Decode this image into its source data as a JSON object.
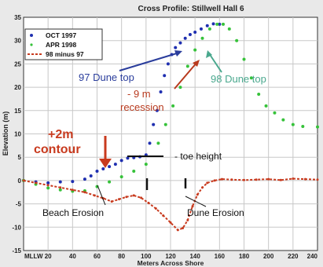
{
  "chart_data": {
    "type": "line",
    "title": "Cross Profile: Stillwell Hall 6",
    "xlabel": "Meters Across Shore",
    "ylabel": "Elevation (m)",
    "xlim": [
      0,
      240
    ],
    "ylim": [
      -15,
      35
    ],
    "x_ticks": [
      "MLLW",
      "20",
      "40",
      "60",
      "80",
      "100",
      "120",
      "140",
      "160",
      "180",
      "200",
      "220",
      "240"
    ],
    "y_ticks": [
      "35",
      "30",
      "25",
      "20",
      "15",
      "10",
      "5",
      "0",
      "-5",
      "-10",
      "-15"
    ],
    "grid": true,
    "legend_position": "top-left",
    "series": [
      {
        "name": "OCT 1997",
        "color": "#1f2fb0",
        "style": "markers",
        "points": [
          [
            0,
            0
          ],
          [
            10,
            -0.3
          ],
          [
            20,
            -0.5
          ],
          [
            30,
            -0.3
          ],
          [
            40,
            -0.2
          ],
          [
            50,
            0.3
          ],
          [
            55,
            1
          ],
          [
            60,
            2
          ],
          [
            65,
            2.5
          ],
          [
            70,
            3
          ],
          [
            75,
            3.5
          ],
          [
            80,
            4.3
          ],
          [
            85,
            4.8
          ],
          [
            90,
            4.9
          ],
          [
            95,
            5.1
          ],
          [
            100,
            5.5
          ],
          [
            103,
            8
          ],
          [
            106,
            12
          ],
          [
            109,
            15
          ],
          [
            112,
            19
          ],
          [
            115,
            22.5
          ],
          [
            118,
            25
          ],
          [
            121,
            27
          ],
          [
            124,
            28.5
          ],
          [
            128,
            29.5
          ],
          [
            132,
            30.5
          ],
          [
            136,
            31.3
          ],
          [
            140,
            31.8
          ],
          [
            145,
            32.5
          ],
          [
            150,
            33.2
          ],
          [
            155,
            33.6
          ],
          [
            160,
            33.5
          ]
        ]
      },
      {
        "name": "APR 1998",
        "color": "#36c23a",
        "style": "markers",
        "points": [
          [
            0,
            0
          ],
          [
            10,
            -0.8
          ],
          [
            20,
            -1.6
          ],
          [
            30,
            -2
          ],
          [
            40,
            -2.3
          ],
          [
            50,
            -2.2
          ],
          [
            60,
            -1.3
          ],
          [
            70,
            -0.3
          ],
          [
            80,
            0.8
          ],
          [
            90,
            2
          ],
          [
            100,
            3.5
          ],
          [
            110,
            8
          ],
          [
            116,
            12
          ],
          [
            122,
            16
          ],
          [
            128,
            20
          ],
          [
            134,
            24.5
          ],
          [
            140,
            28
          ],
          [
            146,
            30.5
          ],
          [
            152,
            32.5
          ],
          [
            158,
            33.5
          ],
          [
            163,
            33.5
          ],
          [
            168,
            32.5
          ],
          [
            174,
            30
          ],
          [
            180,
            26
          ],
          [
            186,
            22
          ],
          [
            192,
            18.5
          ],
          [
            198,
            16
          ],
          [
            205,
            14.5
          ],
          [
            212,
            13
          ],
          [
            220,
            12
          ],
          [
            228,
            11.6
          ],
          [
            240,
            11.5
          ]
        ]
      },
      {
        "name": "98 minus 97",
        "color": "#c83a1e",
        "style": "dashed",
        "points": [
          [
            0,
            0
          ],
          [
            10,
            -0.5
          ],
          [
            20,
            -1
          ],
          [
            30,
            -1.5
          ],
          [
            40,
            -2
          ],
          [
            50,
            -2.5
          ],
          [
            58,
            -3.2
          ],
          [
            65,
            -3.8
          ],
          [
            72,
            -4.5
          ],
          [
            78,
            -4
          ],
          [
            84,
            -3.5
          ],
          [
            90,
            -3.2
          ],
          [
            96,
            -3.7
          ],
          [
            102,
            -4.8
          ],
          [
            108,
            -6
          ],
          [
            114,
            -7.5
          ],
          [
            120,
            -9
          ],
          [
            126,
            -10.6
          ],
          [
            130,
            -10.2
          ],
          [
            134,
            -8.5
          ],
          [
            138,
            -5.5
          ],
          [
            142,
            -3
          ],
          [
            146,
            -1.5
          ],
          [
            150,
            -0.5
          ],
          [
            156,
            0
          ],
          [
            162,
            0.3
          ],
          [
            170,
            0.2
          ],
          [
            180,
            0.1
          ],
          [
            190,
            0.2
          ],
          [
            200,
            0.3
          ],
          [
            210,
            0.1
          ],
          [
            220,
            0.4
          ],
          [
            230,
            0.3
          ],
          [
            240,
            0.2
          ]
        ]
      }
    ],
    "annotations": [
      {
        "text": "97 Dune top",
        "color": "#2a3d9c"
      },
      {
        "text": "98 Dune top",
        "color": "#4aa88e"
      },
      {
        "text": "- 9 m",
        "color": "#b83a1e"
      },
      {
        "text": "recession",
        "color": "#b83a1e"
      },
      {
        "text": "+2m",
        "color": "#c83a1e"
      },
      {
        "text": "contour",
        "color": "#c83a1e"
      },
      {
        "text": "- toe height",
        "color": "#111111"
      },
      {
        "text": "Beach Erosion",
        "color": "#111111"
      },
      {
        "text": "Dune Erosion",
        "color": "#111111"
      }
    ]
  }
}
